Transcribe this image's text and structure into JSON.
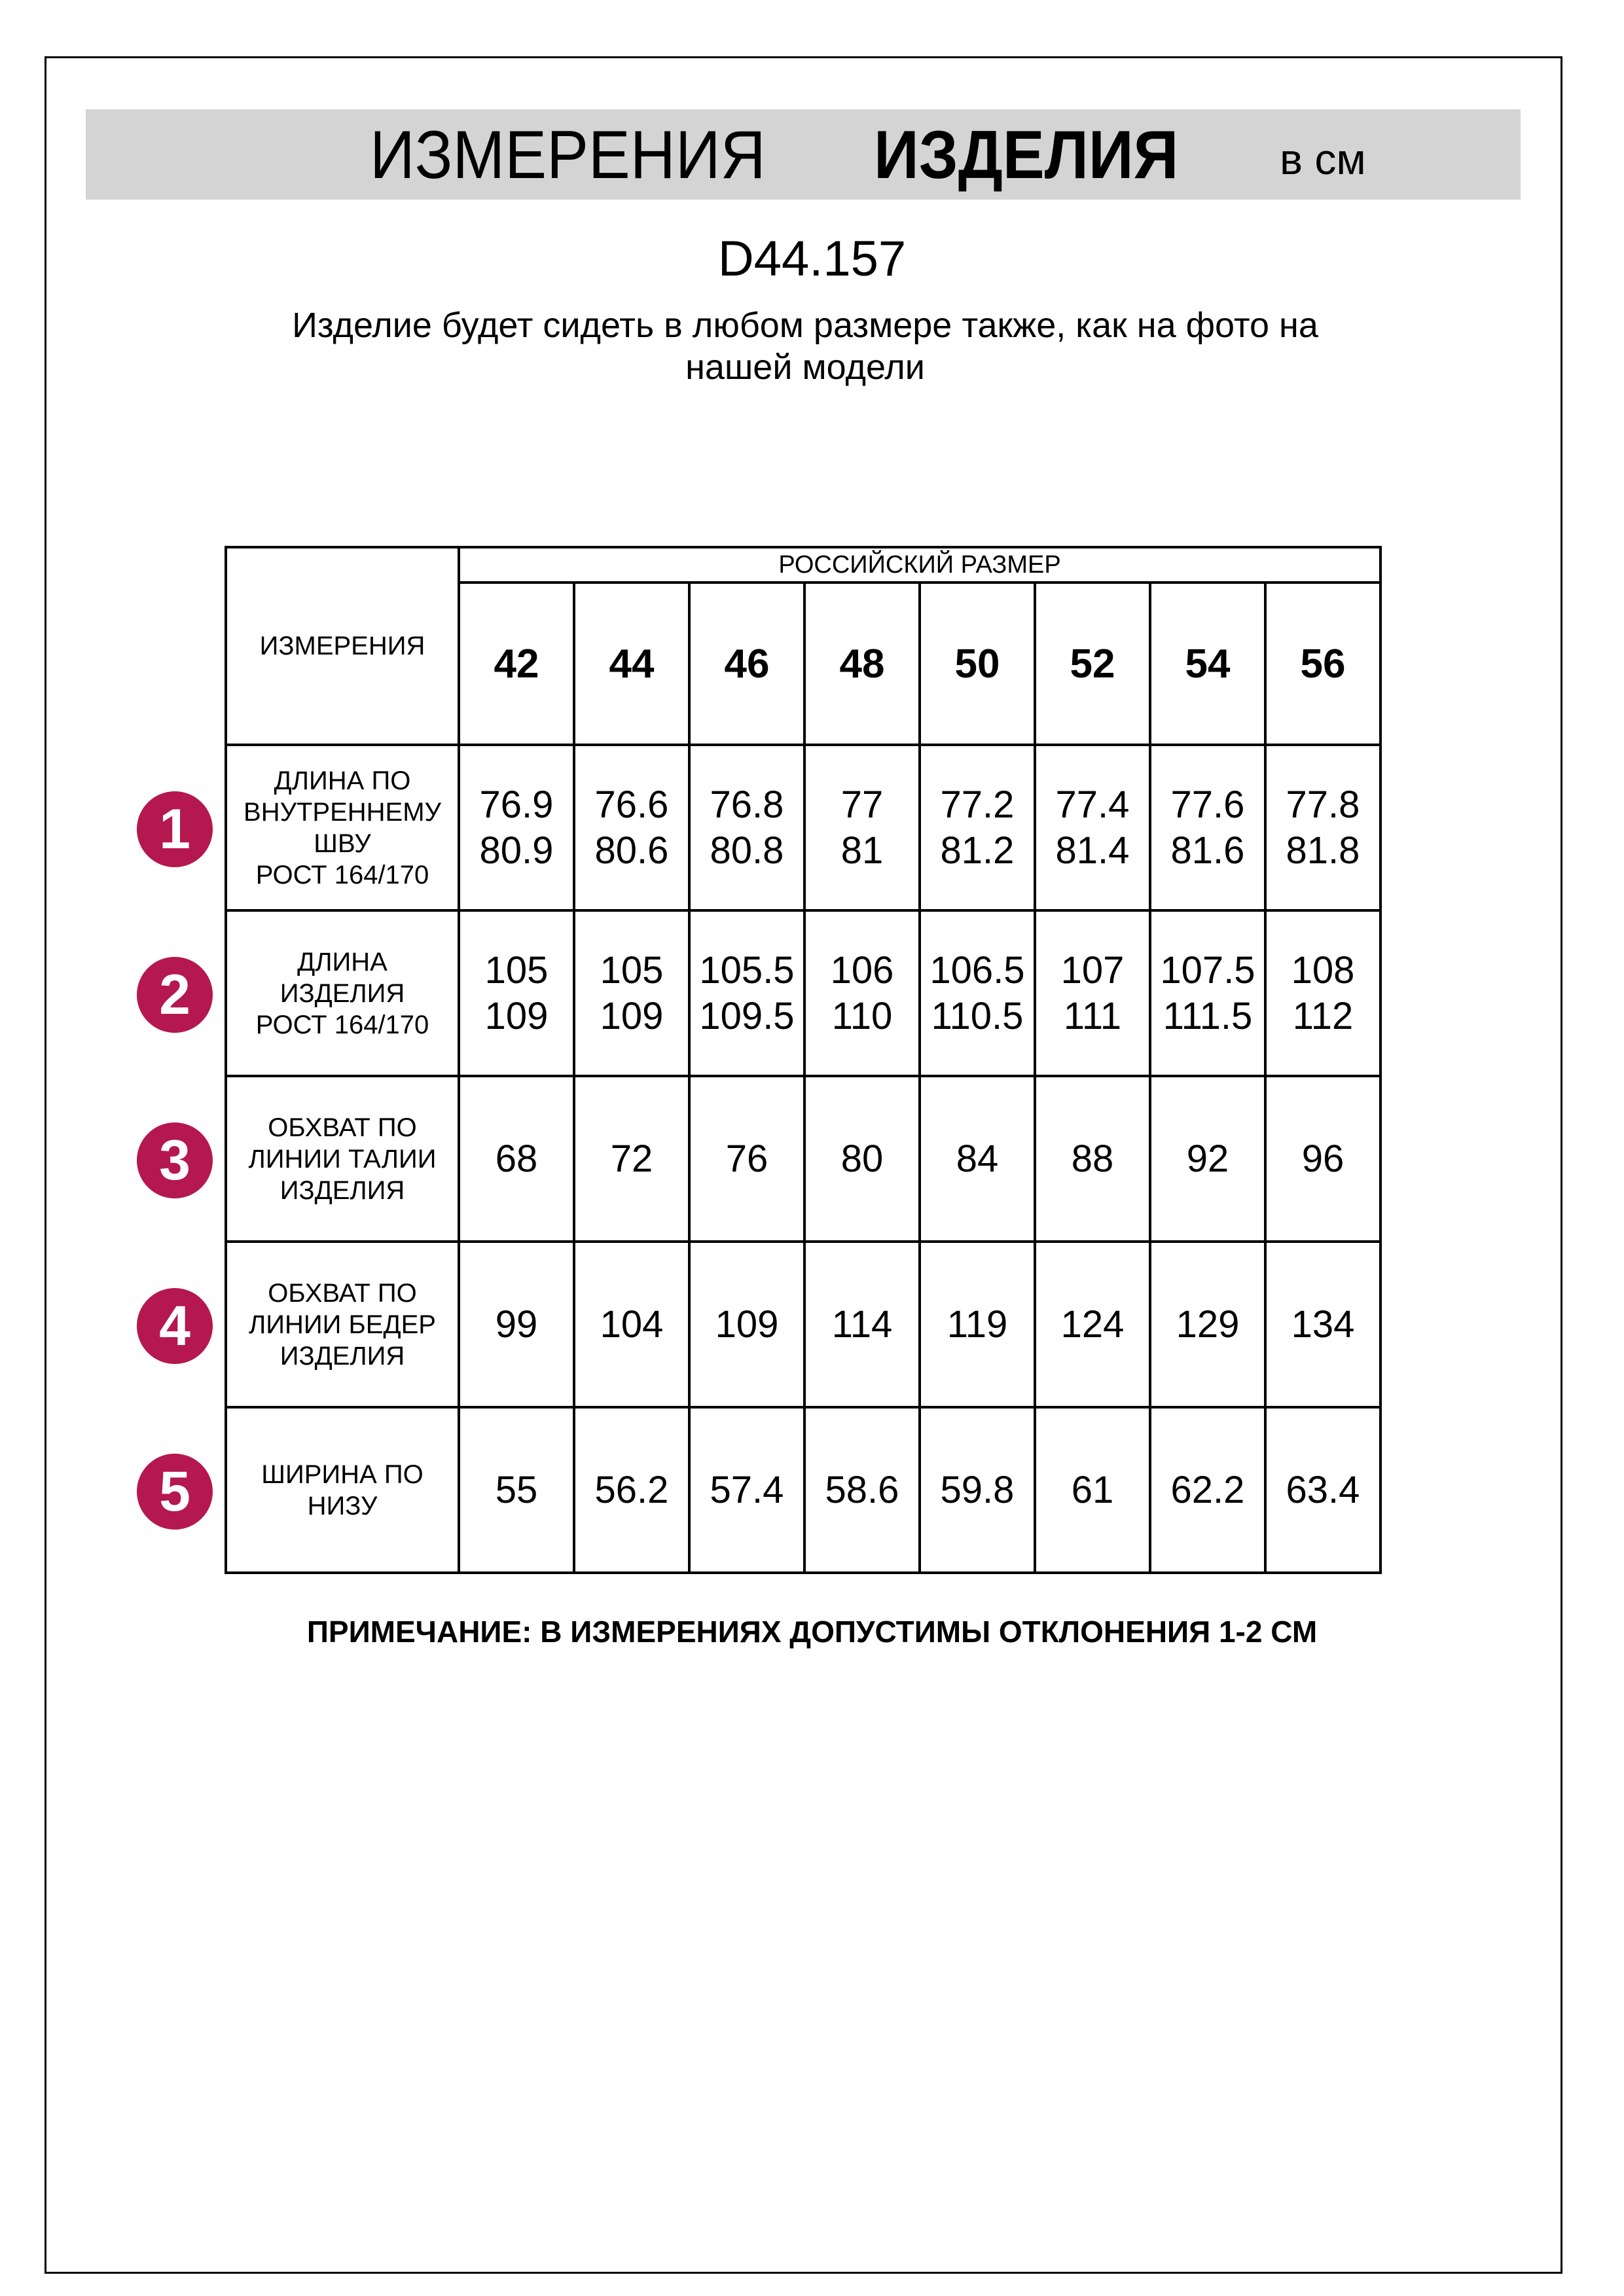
{
  "header": {
    "title_regular": "ИЗМЕРЕНИЯ",
    "title_bold": "ИЗДЕЛИЯ",
    "unit": "в см"
  },
  "product_code": "D44.157",
  "subtitle": "Изделие будет сидеть в любом размере также, как на фото на нашей модели",
  "table": {
    "measure_header": "ИЗМЕРЕНИЯ",
    "size_group_header": "РОССИЙСКИЙ РАЗМЕР",
    "sizes": [
      "42",
      "44",
      "46",
      "48",
      "50",
      "52",
      "54",
      "56"
    ],
    "badge_color": "#b5174f",
    "rows": [
      {
        "num": "1",
        "label": [
          "ДЛИНА ПО",
          "ВНУТРЕННЕМУ",
          "ШВУ",
          "РОСТ 164/170"
        ],
        "values": [
          [
            "76.9",
            "80.9"
          ],
          [
            "76.6",
            "80.6"
          ],
          [
            "76.8",
            "80.8"
          ],
          [
            "77",
            "81"
          ],
          [
            "77.2",
            "81.2"
          ],
          [
            "77.4",
            "81.4"
          ],
          [
            "77.6",
            "81.6"
          ],
          [
            "77.8",
            "81.8"
          ]
        ]
      },
      {
        "num": "2",
        "label": [
          "ДЛИНА",
          "ИЗДЕЛИЯ",
          "РОСТ 164/170"
        ],
        "values": [
          [
            "105",
            "109"
          ],
          [
            "105",
            "109"
          ],
          [
            "105.5",
            "109.5"
          ],
          [
            "106",
            "110"
          ],
          [
            "106.5",
            "110.5"
          ],
          [
            "107",
            "111"
          ],
          [
            "107.5",
            "111.5"
          ],
          [
            "108",
            "112"
          ]
        ]
      },
      {
        "num": "3",
        "label": [
          "ОБХВАТ ПО",
          "ЛИНИИ ТАЛИИ",
          "ИЗДЕЛИЯ"
        ],
        "values": [
          [
            "68"
          ],
          [
            "72"
          ],
          [
            "76"
          ],
          [
            "80"
          ],
          [
            "84"
          ],
          [
            "88"
          ],
          [
            "92"
          ],
          [
            "96"
          ]
        ]
      },
      {
        "num": "4",
        "label": [
          "ОБХВАТ ПО",
          "ЛИНИИ БЕДЕР",
          "ИЗДЕЛИЯ"
        ],
        "values": [
          [
            "99"
          ],
          [
            "104"
          ],
          [
            "109"
          ],
          [
            "114"
          ],
          [
            "119"
          ],
          [
            "124"
          ],
          [
            "129"
          ],
          [
            "134"
          ]
        ]
      },
      {
        "num": "5",
        "label": [
          "ШИРИНА ПО",
          "НИЗУ"
        ],
        "values": [
          [
            "55"
          ],
          [
            "56.2"
          ],
          [
            "57.4"
          ],
          [
            "58.6"
          ],
          [
            "59.8"
          ],
          [
            "61"
          ],
          [
            "62.2"
          ],
          [
            "63.4"
          ]
        ]
      }
    ]
  },
  "note": "ПРИМЕЧАНИЕ: В ИЗМЕРЕНИЯХ ДОПУСТИМЫ ОТКЛОНЕНИЯ 1-2 СМ"
}
